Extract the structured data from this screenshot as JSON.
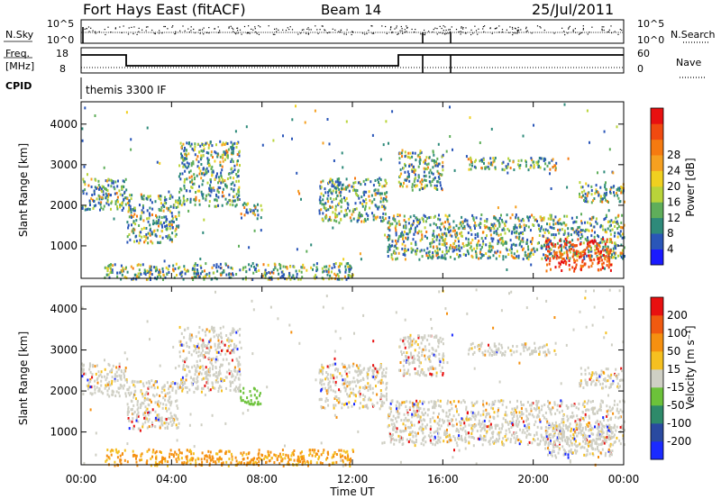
{
  "header": {
    "station": "Fort Hays East (fitACF)",
    "beam": "Beam 14",
    "date": "25/Jul/2011"
  },
  "aux_panels": {
    "noise": {
      "left_label": "N.Sky",
      "right_label": "N.Search",
      "left_ticks": [
        "10^5",
        "10^0"
      ],
      "right_ticks": [
        "10^5",
        "10^0"
      ]
    },
    "freq": {
      "left_label_1": "Freq.",
      "left_label_2": "[MHz]",
      "right_label": "Nave",
      "left_ticks": [
        "18",
        "8"
      ],
      "right_ticks": [
        "60",
        "0"
      ]
    },
    "cpid": {
      "label": "CPID",
      "value": "themis 3300 IF"
    }
  },
  "chart_data": [
    {
      "type": "heatmap",
      "name": "power",
      "ylabel": "Slant Range [km]",
      "ylim": [
        200,
        4550
      ],
      "xlim": [
        0,
        24
      ],
      "yticks": [
        1000,
        2000,
        3000,
        4000
      ],
      "colorbar": {
        "label": "Power [dB]",
        "ticks": [
          "4",
          "8",
          "12",
          "16",
          "20",
          "24",
          "28"
        ],
        "colors": [
          "#1a1aff",
          "#2a56b8",
          "#2e8a7a",
          "#5fae5a",
          "#b9d43a",
          "#f0d020",
          "#f5a020",
          "#f57a10",
          "#f04a10",
          "#e81010"
        ]
      }
    },
    {
      "type": "heatmap",
      "name": "velocity",
      "ylabel": "Slant Range [km]",
      "ylim": [
        200,
        4550
      ],
      "xlim": [
        0,
        24
      ],
      "yticks": [
        1000,
        2000,
        3000,
        4000
      ],
      "xlabel": "Time UT",
      "xticks": [
        "00:00",
        "04:00",
        "08:00",
        "12:00",
        "16:00",
        "20:00",
        "00:00"
      ],
      "colorbar": {
        "label": "Velocity [m s⁻¹]",
        "ticks": [
          "200",
          "100",
          "50",
          "15",
          "-15",
          "-50",
          "-100",
          "-200"
        ],
        "colors": [
          "#1a2aff",
          "#2a4aa0",
          "#2e8a6a",
          "#6cc23a",
          "#cfcfc4",
          "#f5c020",
          "#f59010",
          "#f05a10",
          "#e81010"
        ]
      }
    }
  ]
}
